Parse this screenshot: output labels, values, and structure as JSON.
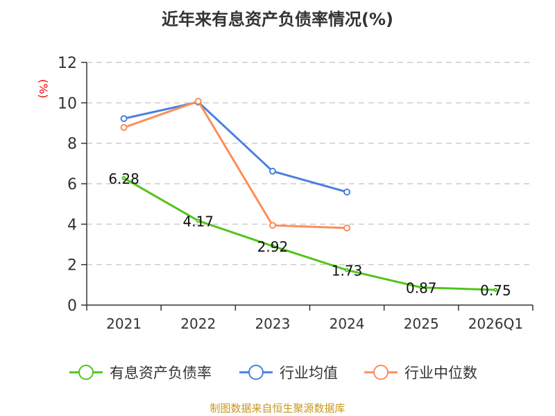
{
  "chart_data": {
    "type": "line",
    "title": "近年来有息资产负债率情况(%)",
    "ylabel": "(%)",
    "xlabel": "",
    "ylim": [
      0,
      12
    ],
    "yticks": [
      0,
      2,
      4,
      6,
      8,
      10,
      12
    ],
    "grid": true,
    "legend_position": "bottom",
    "categories": [
      "2021",
      "2022",
      "2023",
      "2024",
      "2025",
      "2026Q1"
    ],
    "series": [
      {
        "name": "有息资产负债率",
        "color": "#52c41a",
        "values": [
          6.28,
          4.17,
          2.92,
          1.73,
          0.87,
          0.75
        ],
        "labels": [
          "6.28",
          "4.17",
          "2.92",
          "1.73",
          "0.87",
          "0.75"
        ]
      },
      {
        "name": "行业均值",
        "color": "#4a7fe0",
        "values": [
          9.22,
          10.04,
          6.62,
          5.59,
          null,
          null
        ]
      },
      {
        "name": "行业中位数",
        "color": "#ff8c5a",
        "values": [
          8.78,
          10.08,
          3.94,
          3.81,
          null,
          null
        ]
      }
    ]
  },
  "footer": "制图数据来自恒生聚源数据库"
}
